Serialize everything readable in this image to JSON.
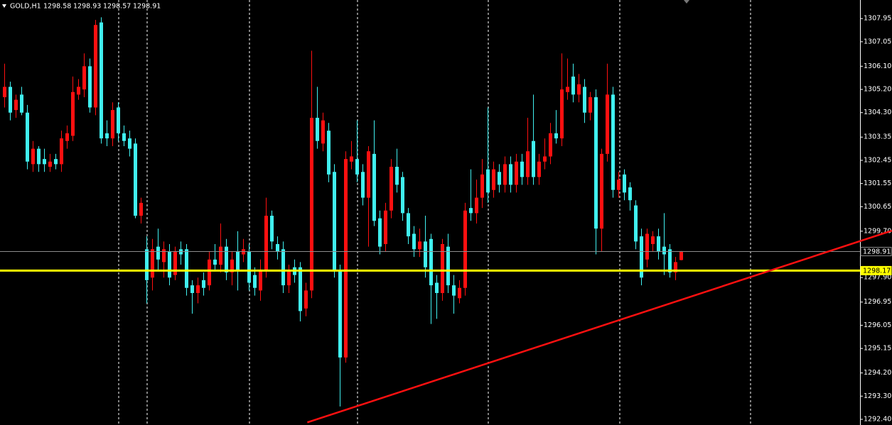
{
  "chart_data": {
    "type": "candlestick",
    "symbol": "GOLD,H1",
    "ohlc": [
      1298.58,
      1298.93,
      1298.57,
      1298.91
    ],
    "up_color": "#ff1010",
    "down_color": "#40f0f0",
    "open": [
      1304.9,
      1305.3,
      1304.4,
      1305.0,
      1304.3,
      1302.3,
      1302.9,
      1302.5,
      1302.2,
      1302.5,
      1302.3,
      1303.2,
      1303.4,
      1305.0,
      1305.2,
      1306.1,
      1304.5,
      1307.8,
      1303.5,
      1303.3,
      1304.5,
      1303.5,
      1303.3,
      1303.1,
      1300.3,
      1299.0,
      1297.9,
      1299.1,
      1298.5,
      1298.9,
      1298.0,
      1299.0,
      1299.0,
      1297.6,
      1297.3,
      1297.8,
      1297.6,
      1298.6,
      1298.4,
      1299.1,
      1298.1,
      1298.9,
      1298.8,
      1298.9,
      1298.0,
      1297.4,
      1298.2,
      1300.3,
      1299.2,
      1299.0,
      1297.6,
      1298.3,
      1298.3,
      1296.7,
      1297.4,
      1304.1,
      1303.1,
      1303.6,
      1302.0,
      1298.2,
      1294.8,
      1302.4,
      1302.5,
      1302.0,
      1301.0,
      1302.7,
      1300.2,
      1299.2,
      1300.5,
      1302.2,
      1301.8,
      1300.4,
      1299.6,
      1299.0,
      1299.3,
      1299.4,
      1297.7,
      1297.3,
      1299.1,
      1297.6,
      1297.1,
      1297.5,
      1300.6,
      1300.4,
      1301.0,
      1302.1,
      1301.3,
      1302.0,
      1301.5,
      1302.3,
      1301.5,
      1302.4,
      1301.8,
      1303.2,
      1301.8,
      1302.4,
      1302.6,
      1303.5,
      1303.3,
      1305.1,
      1305.7,
      1305.0,
      1305.3,
      1304.3,
      1304.9,
      1299.8,
      1302.7,
      1305.0,
      1301.3,
      1301.9,
      1301.4,
      1300.7,
      1299.5,
      1298.6,
      1299.2,
      1299.5,
      1299.1,
      1299.0,
      1298.1,
      1298.58
    ],
    "high": [
      1306.2,
      1305.5,
      1305.0,
      1305.3,
      1304.6,
      1303.2,
      1303.0,
      1302.9,
      1302.7,
      1302.7,
      1303.6,
      1303.8,
      1305.7,
      1305.6,
      1306.6,
      1306.4,
      1307.9,
      1308.0,
      1304.0,
      1304.7,
      1304.7,
      1303.8,
      1303.6,
      1303.3,
      1301.0,
      1299.5,
      1299.4,
      1299.8,
      1299.3,
      1299.2,
      1299.1,
      1299.3,
      1299.2,
      1297.8,
      1297.9,
      1298.1,
      1298.9,
      1299.2,
      1300.0,
      1299.4,
      1298.9,
      1299.7,
      1299.4,
      1299.2,
      1298.3,
      1298.6,
      1301.0,
      1300.5,
      1299.5,
      1299.3,
      1298.4,
      1298.6,
      1298.5,
      1297.7,
      1306.7,
      1305.3,
      1304.3,
      1303.9,
      1302.3,
      1298.4,
      1302.8,
      1303.2,
      1304.0,
      1302.3,
      1303.0,
      1304.0,
      1300.5,
      1300.8,
      1302.5,
      1302.9,
      1302.0,
      1300.6,
      1299.9,
      1299.8,
      1300.3,
      1299.6,
      1298.0,
      1299.4,
      1299.6,
      1298.0,
      1297.8,
      1300.8,
      1302.1,
      1301.7,
      1302.5,
      1304.5,
      1302.4,
      1302.3,
      1302.6,
      1302.6,
      1302.7,
      1302.7,
      1304.1,
      1305.0,
      1302.7,
      1303.3,
      1303.9,
      1304.4,
      1306.6,
      1306.4,
      1306.2,
      1305.8,
      1305.6,
      1305.1,
      1305.2,
      1302.9,
      1306.2,
      1305.3,
      1302.0,
      1302.1,
      1301.6,
      1300.9,
      1299.8,
      1299.8,
      1299.7,
      1299.8,
      1300.4,
      1299.2,
      1298.7,
      1298.93
    ],
    "low": [
      1304.5,
      1304.0,
      1304.1,
      1304.2,
      1302.1,
      1302.0,
      1302.0,
      1302.0,
      1302.0,
      1302.1,
      1302.0,
      1302.9,
      1303.2,
      1304.8,
      1304.9,
      1304.3,
      1304.2,
      1303.1,
      1303.0,
      1303.0,
      1303.2,
      1303.0,
      1302.6,
      1300.2,
      1300.0,
      1296.9,
      1297.4,
      1298.2,
      1297.9,
      1297.6,
      1297.8,
      1298.4,
      1297.2,
      1296.5,
      1296.9,
      1297.2,
      1297.4,
      1298.2,
      1298.1,
      1297.8,
      1297.6,
      1297.4,
      1298.5,
      1297.4,
      1297.2,
      1297.0,
      1297.9,
      1299.0,
      1298.6,
      1297.3,
      1297.3,
      1297.7,
      1296.2,
      1296.4,
      1297.1,
      1302.9,
      1302.8,
      1301.6,
      1297.9,
      1292.9,
      1294.6,
      1302.1,
      1301.6,
      1300.7,
      1299.1,
      1299.9,
      1298.8,
      1298.9,
      1300.2,
      1301.2,
      1300.1,
      1299.2,
      1298.7,
      1298.7,
      1297.9,
      1296.1,
      1296.3,
      1297.0,
      1297.3,
      1296.5,
      1296.9,
      1297.2,
      1300.1,
      1300.0,
      1300.6,
      1300.8,
      1301.0,
      1301.2,
      1301.2,
      1301.2,
      1301.2,
      1301.5,
      1301.5,
      1301.5,
      1301.5,
      1302.1,
      1302.3,
      1303.1,
      1303.0,
      1304.8,
      1304.7,
      1304.7,
      1303.9,
      1304.0,
      1298.8,
      1298.9,
      1302.4,
      1301.0,
      1301.0,
      1300.9,
      1300.5,
      1299.0,
      1297.6,
      1298.3,
      1298.9,
      1298.6,
      1298.0,
      1297.9,
      1297.8,
      1298.57
    ],
    "close": [
      1305.3,
      1304.3,
      1304.8,
      1304.3,
      1302.4,
      1302.9,
      1302.3,
      1302.3,
      1302.4,
      1302.3,
      1303.3,
      1303.5,
      1305.1,
      1305.3,
      1306.1,
      1304.5,
      1307.7,
      1303.3,
      1303.3,
      1304.4,
      1303.5,
      1303.2,
      1302.9,
      1300.3,
      1300.8,
      1297.8,
      1299.0,
      1298.6,
      1299.0,
      1297.9,
      1298.9,
      1298.8,
      1297.5,
      1297.3,
      1297.6,
      1297.5,
      1298.6,
      1298.4,
      1299.1,
      1298.1,
      1298.6,
      1298.2,
      1299.0,
      1297.7,
      1297.5,
      1298.2,
      1300.3,
      1299.3,
      1298.9,
      1297.6,
      1298.2,
      1298.0,
      1296.6,
      1297.4,
      1304.1,
      1303.2,
      1304.0,
      1301.9,
      1298.2,
      1294.8,
      1302.5,
      1302.6,
      1301.9,
      1301.0,
      1302.8,
      1300.1,
      1299.1,
      1300.5,
      1302.2,
      1301.5,
      1300.4,
      1299.5,
      1299.0,
      1299.3,
      1298.3,
      1297.6,
      1297.3,
      1299.2,
      1297.6,
      1297.2,
      1297.5,
      1300.5,
      1300.4,
      1301.0,
      1301.9,
      1301.2,
      1302.1,
      1301.5,
      1302.3,
      1301.5,
      1302.4,
      1301.8,
      1302.8,
      1301.8,
      1302.4,
      1302.6,
      1303.5,
      1303.3,
      1305.2,
      1305.3,
      1305.0,
      1305.4,
      1304.3,
      1304.9,
      1299.8,
      1302.7,
      1305.0,
      1301.3,
      1301.7,
      1301.2,
      1300.9,
      1299.3,
      1297.9,
      1299.6,
      1299.5,
      1298.9,
      1298.8,
      1298.1,
      1298.5,
      1298.91
    ],
    "ylim": [
      1292.18,
      1308.67
    ],
    "yticks": [
      1307.95,
      1307.05,
      {
        "value": 1306.1,
        "label": "1306.10"
      },
      {
        "value": 1305.2,
        "label": "1305.20"
      },
      {
        "value": 1304.3,
        "label": "1304.30"
      },
      1303.35,
      1302.45,
      1301.55,
      1300.65,
      {
        "value": 1299.7,
        "label": "1299.70"
      },
      {
        "value": 1297.9,
        "label": "1297.90"
      },
      1296.95,
      1296.05,
      1295.15,
      {
        "value": 1294.2,
        "label": "1294.20"
      },
      {
        "value": 1293.3,
        "label": "1293.30"
      },
      {
        "value": 1292.4,
        "label": "1292.40"
      }
    ],
    "price_lines": [
      {
        "value": 1298.91,
        "color": "#8c8c8c"
      },
      {
        "value": 1298.17,
        "color": "#ffff00"
      }
    ],
    "trendline": {
      "x": [
        53.3,
        156.1
      ],
      "y": [
        1292.28,
        1299.72
      ],
      "color": "#ff1010"
    }
  }
}
